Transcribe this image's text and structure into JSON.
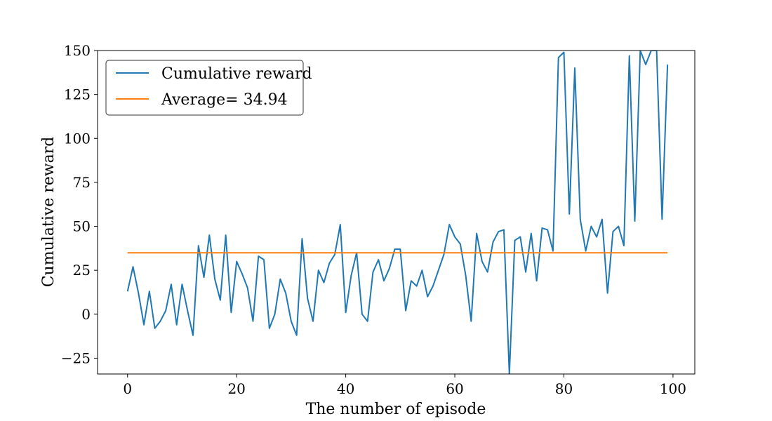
{
  "chart_data": {
    "type": "line",
    "title": "",
    "xlabel": "The number of episode",
    "ylabel": "Cumulative reward",
    "xlim": [
      -5.5,
      104
    ],
    "ylim": [
      -34,
      150
    ],
    "x_ticks": [
      0,
      20,
      40,
      60,
      80,
      100
    ],
    "y_ticks": [
      -25,
      0,
      25,
      50,
      75,
      100,
      125,
      150
    ],
    "x_tick_labels": [
      "0",
      "20",
      "40",
      "60",
      "80",
      "100"
    ],
    "y_tick_labels": [
      "−25",
      "0",
      "25",
      "50",
      "75",
      "100",
      "125",
      "150"
    ],
    "grid": false,
    "legend_position": "top-left",
    "x": [
      0,
      1,
      2,
      3,
      4,
      5,
      6,
      7,
      8,
      9,
      10,
      11,
      12,
      13,
      14,
      15,
      16,
      17,
      18,
      19,
      20,
      21,
      22,
      23,
      24,
      25,
      26,
      27,
      28,
      29,
      30,
      31,
      32,
      33,
      34,
      35,
      36,
      37,
      38,
      39,
      40,
      41,
      42,
      43,
      44,
      45,
      46,
      47,
      48,
      49,
      50,
      51,
      52,
      53,
      54,
      55,
      56,
      57,
      58,
      59,
      60,
      61,
      62,
      63,
      64,
      65,
      66,
      67,
      68,
      69,
      70,
      71,
      72,
      73,
      74,
      75,
      76,
      77,
      78,
      79,
      80,
      81,
      82,
      83,
      84,
      85,
      86,
      87,
      88,
      89,
      90,
      91,
      92,
      93,
      94,
      95,
      96,
      97,
      98,
      99
    ],
    "series": [
      {
        "name": "Cumulative reward",
        "color": "#1f77b4",
        "values": [
          13,
          27,
          12,
          -6,
          13,
          -8,
          -4,
          2,
          17,
          -6,
          17,
          2,
          -12,
          39,
          21,
          45,
          20,
          8,
          45,
          1,
          30,
          23,
          15,
          -4,
          33,
          31,
          -8,
          0,
          20,
          12,
          -4,
          -12,
          43,
          9,
          -4,
          25,
          18,
          29,
          34,
          51,
          1,
          22,
          35,
          0,
          -4,
          24,
          31,
          19,
          26,
          37,
          37,
          2,
          19,
          16,
          25,
          10,
          16,
          25,
          34,
          51,
          44,
          40,
          22,
          -4,
          46,
          30,
          24,
          41,
          47,
          48,
          -34,
          42,
          44,
          24,
          46,
          19,
          49,
          48,
          36,
          146,
          149,
          57,
          140,
          54,
          36,
          50,
          44,
          54,
          12,
          47,
          50,
          39,
          147,
          53,
          150,
          142,
          150,
          150,
          54,
          142
        ]
      },
      {
        "name": "Average= 34.94",
        "color": "#ff7f0e",
        "values": [
          34.94,
          34.94,
          34.94,
          34.94,
          34.94,
          34.94,
          34.94,
          34.94,
          34.94,
          34.94,
          34.94,
          34.94,
          34.94,
          34.94,
          34.94,
          34.94,
          34.94,
          34.94,
          34.94,
          34.94,
          34.94,
          34.94,
          34.94,
          34.94,
          34.94,
          34.94,
          34.94,
          34.94,
          34.94,
          34.94,
          34.94,
          34.94,
          34.94,
          34.94,
          34.94,
          34.94,
          34.94,
          34.94,
          34.94,
          34.94,
          34.94,
          34.94,
          34.94,
          34.94,
          34.94,
          34.94,
          34.94,
          34.94,
          34.94,
          34.94,
          34.94,
          34.94,
          34.94,
          34.94,
          34.94,
          34.94,
          34.94,
          34.94,
          34.94,
          34.94,
          34.94,
          34.94,
          34.94,
          34.94,
          34.94,
          34.94,
          34.94,
          34.94,
          34.94,
          34.94,
          34.94,
          34.94,
          34.94,
          34.94,
          34.94,
          34.94,
          34.94,
          34.94,
          34.94,
          34.94,
          34.94,
          34.94,
          34.94,
          34.94,
          34.94,
          34.94,
          34.94,
          34.94,
          34.94,
          34.94,
          34.94,
          34.94,
          34.94,
          34.94,
          34.94,
          34.94,
          34.94,
          34.94,
          34.94,
          34.94
        ]
      }
    ]
  }
}
